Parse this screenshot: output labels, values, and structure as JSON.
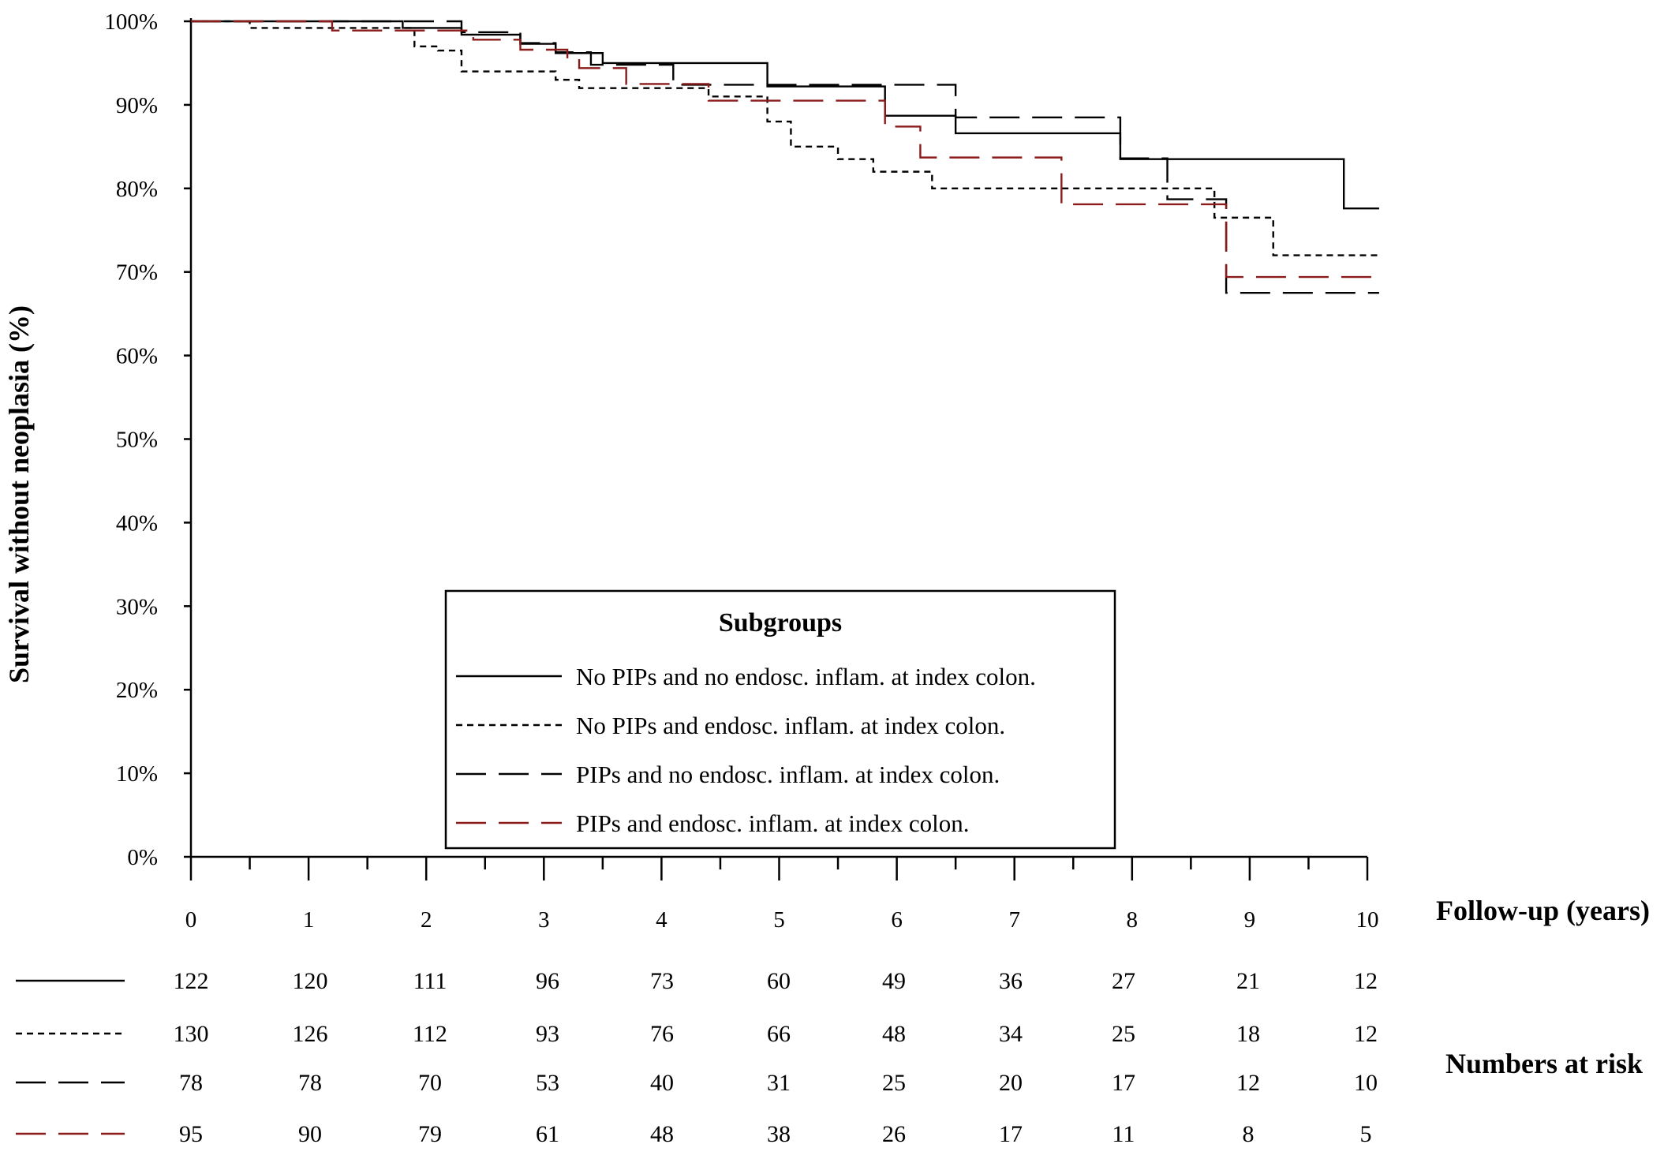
{
  "chart_data": {
    "type": "line",
    "xlabel": "Follow-up (years)",
    "ylabel": "Survival without neoplasia (%)",
    "xlim": [
      0,
      10
    ],
    "ylim": [
      0,
      100
    ],
    "x_ticks": [
      "0",
      "1",
      "2",
      "3",
      "4",
      "5",
      "6",
      "7",
      "8",
      "9",
      "10"
    ],
    "y_ticks": [
      "0%",
      "10%",
      "20%",
      "30%",
      "40%",
      "50%",
      "60%",
      "70%",
      "80%",
      "90%",
      "100%"
    ],
    "grid": false,
    "legend": {
      "title": "Subgroups",
      "placement": "bottom-center"
    },
    "series": [
      {
        "name": "No PIPs and no endosc. inflam. at index colon.",
        "color": "#000000",
        "dash": "solid",
        "steps": [
          [
            0,
            100
          ],
          [
            1.8,
            99.2
          ],
          [
            2.0,
            99.2
          ],
          [
            2.3,
            98.4
          ],
          [
            2.7,
            98.4
          ],
          [
            2.8,
            97.3
          ],
          [
            3.1,
            96.2
          ],
          [
            3.5,
            95.0
          ],
          [
            4.9,
            92.2
          ],
          [
            5.5,
            92.2
          ],
          [
            5.9,
            88.7
          ],
          [
            6.5,
            86.6
          ],
          [
            7.9,
            83.5
          ],
          [
            8.5,
            83.5
          ],
          [
            9.8,
            77.6
          ],
          [
            10.1,
            77.6
          ]
        ]
      },
      {
        "name": "No PIPs and endosc. inflam. at index colon.",
        "color": "#000000",
        "dash": "short",
        "steps": [
          [
            0,
            100
          ],
          [
            0.5,
            99.2
          ],
          [
            1.3,
            99.2
          ],
          [
            1.9,
            97.0
          ],
          [
            2.1,
            96.5
          ],
          [
            2.3,
            94.0
          ],
          [
            3.0,
            94.0
          ],
          [
            3.1,
            93.0
          ],
          [
            3.3,
            92.0
          ],
          [
            4.1,
            92.0
          ],
          [
            4.4,
            91.0
          ],
          [
            4.9,
            88.0
          ],
          [
            5.1,
            85.0
          ],
          [
            5.3,
            85.0
          ],
          [
            5.5,
            83.5
          ],
          [
            5.8,
            82.0
          ],
          [
            6.1,
            82.0
          ],
          [
            6.3,
            80.0
          ],
          [
            8.4,
            80.0
          ],
          [
            8.7,
            76.5
          ],
          [
            9.1,
            76.5
          ],
          [
            9.2,
            72.0
          ],
          [
            10.1,
            72.0
          ]
        ]
      },
      {
        "name": "PIPs and no endosc. inflam. at index colon.",
        "color": "#000000",
        "dash": "long",
        "steps": [
          [
            0,
            100
          ],
          [
            2.3,
            98.7
          ],
          [
            2.8,
            97.4
          ],
          [
            3.1,
            96.3
          ],
          [
            3.4,
            94.8
          ],
          [
            4.1,
            92.4
          ],
          [
            6.5,
            88.5
          ],
          [
            7.9,
            83.6
          ],
          [
            8.3,
            78.7
          ],
          [
            8.8,
            67.5
          ],
          [
            10.1,
            67.5
          ]
        ]
      },
      {
        "name": "PIPs and endosc. inflam. at index colon.",
        "color": "#8b1a1a",
        "dash": "long",
        "steps": [
          [
            0,
            100
          ],
          [
            1.2,
            98.9
          ],
          [
            2.0,
            98.9
          ],
          [
            2.4,
            97.8
          ],
          [
            2.7,
            97.8
          ],
          [
            2.8,
            96.6
          ],
          [
            3.2,
            95.5
          ],
          [
            3.3,
            94.4
          ],
          [
            3.6,
            94.4
          ],
          [
            3.7,
            92.5
          ],
          [
            4.4,
            90.5
          ],
          [
            5.9,
            87.4
          ],
          [
            6.2,
            83.7
          ],
          [
            7.4,
            78.1
          ],
          [
            8.8,
            69.4
          ],
          [
            10.1,
            69.4
          ]
        ]
      }
    ]
  },
  "risk_table": {
    "label": "Numbers at risk",
    "rows": [
      {
        "dash": "solid",
        "color": "#000000",
        "values": [
          "122",
          "120",
          "111",
          "96",
          "73",
          "60",
          "49",
          "36",
          "27",
          "21",
          "12"
        ]
      },
      {
        "dash": "short",
        "color": "#000000",
        "values": [
          "130",
          "126",
          "112",
          "93",
          "76",
          "66",
          "48",
          "34",
          "25",
          "18",
          "12"
        ]
      },
      {
        "dash": "long",
        "color": "#000000",
        "values": [
          "78",
          "78",
          "70",
          "53",
          "40",
          "31",
          "25",
          "20",
          "17",
          "12",
          "10"
        ]
      },
      {
        "dash": "long",
        "color": "#8b1a1a",
        "values": [
          "95",
          "90",
          "79",
          "61",
          "48",
          "38",
          "26",
          "17",
          "11",
          "8",
          "5"
        ]
      }
    ]
  }
}
